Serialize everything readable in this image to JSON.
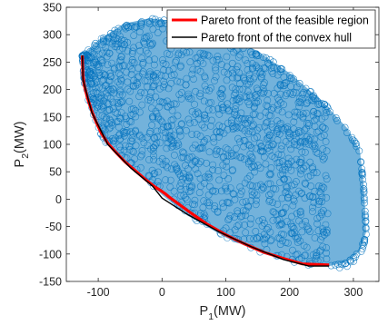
{
  "chart_data": {
    "type": "scatter",
    "xlabel": {
      "main": "P",
      "sub": "1",
      "unit": "(MW)"
    },
    "ylabel": {
      "main": "P",
      "sub": "2",
      "unit": "(MW)"
    },
    "xlim": [
      -150,
      340
    ],
    "ylim": [
      -150,
      350
    ],
    "xticks": [
      -100,
      0,
      100,
      200,
      300
    ],
    "yticks": [
      -150,
      -100,
      -50,
      0,
      50,
      100,
      150,
      200,
      250,
      300,
      350
    ],
    "grid": false,
    "legend_position": "top-right",
    "series": [
      {
        "name": "",
        "kind": "scatter-cloud",
        "marker": "open-circle",
        "color": "#0072BD",
        "boundary_lower": [
          [
            -125,
            260
          ],
          [
            -122,
            210
          ],
          [
            -115,
            175
          ],
          [
            -105,
            140
          ],
          [
            -90,
            105
          ],
          [
            -60,
            70
          ],
          [
            -30,
            40
          ],
          [
            0,
            8
          ],
          [
            40,
            -30
          ],
          [
            100,
            -70
          ],
          [
            160,
            -100
          ],
          [
            220,
            -120
          ],
          [
            260,
            -120
          ]
        ],
        "boundary_upper": [
          [
            -125,
            262
          ],
          [
            -100,
            290
          ],
          [
            -60,
            320
          ],
          [
            -20,
            330
          ],
          [
            20,
            325
          ],
          [
            60,
            315
          ],
          [
            100,
            300
          ],
          [
            150,
            270
          ],
          [
            200,
            230
          ],
          [
            250,
            180
          ],
          [
            290,
            130
          ],
          [
            310,
            90
          ],
          [
            315,
            40
          ],
          [
            318,
            -10
          ],
          [
            320,
            -60
          ],
          [
            310,
            -95
          ],
          [
            290,
            -115
          ],
          [
            262,
            -122
          ]
        ]
      },
      {
        "name": "Pareto front of the feasible region",
        "color": "#FF0000",
        "points": [
          [
            -125,
            262
          ],
          [
            -124,
            225
          ],
          [
            -122,
            208
          ],
          [
            -117,
            185
          ],
          [
            -110,
            160
          ],
          [
            -103,
            140
          ],
          [
            -95,
            120
          ],
          [
            -85,
            102
          ],
          [
            -72,
            85
          ],
          [
            -58,
            68
          ],
          [
            -42,
            52
          ],
          [
            -25,
            35
          ],
          [
            -12,
            23
          ],
          [
            0,
            14
          ],
          [
            5,
            10
          ],
          [
            10,
            5
          ],
          [
            25,
            -8
          ],
          [
            45,
            -25
          ],
          [
            70,
            -45
          ],
          [
            100,
            -65
          ],
          [
            130,
            -82
          ],
          [
            160,
            -97
          ],
          [
            190,
            -108
          ],
          [
            220,
            -118
          ],
          [
            262,
            -120
          ]
        ]
      },
      {
        "name": "Pareto front of the convex hull",
        "color": "#000000",
        "points": [
          [
            -125,
            262
          ],
          [
            -124,
            218
          ],
          [
            -110,
            158
          ],
          [
            -85,
            100
          ],
          [
            -50,
            58
          ],
          [
            -15,
            24
          ],
          [
            0,
            2
          ],
          [
            40,
            -28
          ],
          [
            90,
            -60
          ],
          [
            140,
            -87
          ],
          [
            190,
            -110
          ],
          [
            230,
            -122
          ],
          [
            262,
            -122
          ]
        ]
      }
    ]
  }
}
